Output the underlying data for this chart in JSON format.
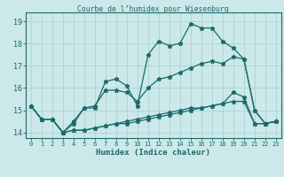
{
  "title": "Courbe de l’humidex pour Wiesenburg",
  "xlabel": "Humidex (Indice chaleur)",
  "x": [
    0,
    1,
    2,
    3,
    4,
    5,
    6,
    7,
    8,
    9,
    10,
    11,
    12,
    13,
    14,
    15,
    16,
    17,
    18,
    19,
    20,
    21,
    22,
    23
  ],
  "line1": [
    15.2,
    14.6,
    14.6,
    14.0,
    14.4,
    15.1,
    15.1,
    16.3,
    16.4,
    16.1,
    15.2,
    17.5,
    18.1,
    17.9,
    18.0,
    18.9,
    18.7,
    18.7,
    18.1,
    17.8,
    17.3,
    15.0,
    14.4,
    14.5
  ],
  "line2": [
    15.2,
    14.6,
    14.6,
    14.0,
    14.5,
    15.1,
    15.2,
    15.9,
    15.9,
    15.8,
    15.4,
    16.0,
    16.4,
    16.5,
    16.7,
    16.9,
    17.1,
    17.2,
    17.1,
    17.4,
    17.3,
    15.0,
    14.4,
    14.5
  ],
  "line3": [
    15.2,
    14.6,
    14.6,
    14.0,
    14.1,
    14.1,
    14.2,
    14.3,
    14.4,
    14.4,
    14.5,
    14.6,
    14.7,
    14.8,
    14.9,
    15.0,
    15.1,
    15.2,
    15.3,
    15.8,
    15.6,
    14.4,
    14.4,
    14.5
  ],
  "line4": [
    15.2,
    14.6,
    14.6,
    14.0,
    14.1,
    14.1,
    14.2,
    14.3,
    14.4,
    14.5,
    14.6,
    14.7,
    14.8,
    14.9,
    15.0,
    15.1,
    15.1,
    15.2,
    15.3,
    15.4,
    15.4,
    14.4,
    14.4,
    14.5
  ],
  "color": "#1a6b6b",
  "bg_color": "#cce8e8",
  "grid_color": "#aad4d4",
  "ylim": [
    13.75,
    19.4
  ],
  "yticks": [
    14,
    15,
    16,
    17,
    18,
    19
  ],
  "xlim": [
    -0.5,
    23.5
  ],
  "marker": "*",
  "markersize": 3.5,
  "linewidth": 0.9
}
